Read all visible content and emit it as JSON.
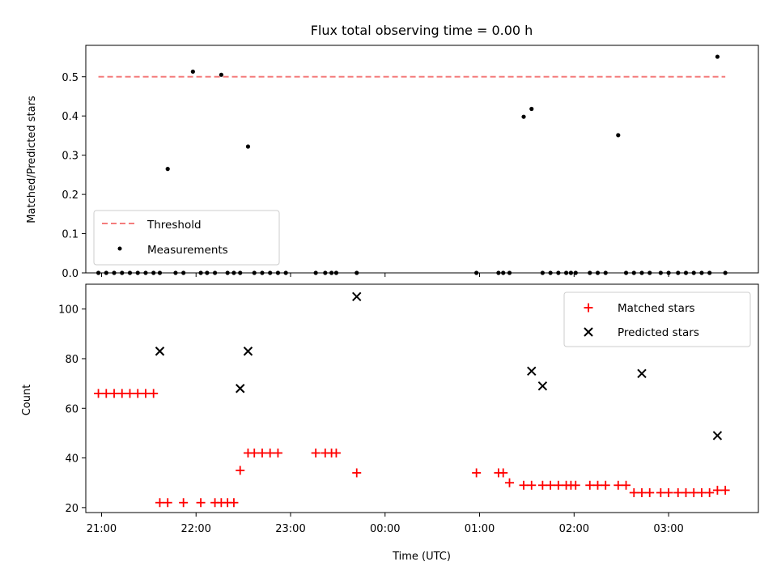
{
  "title": "Flux total observing time = 0.00 h",
  "colors": {
    "threshold": "#f47c7c",
    "measurements": "#000000",
    "matched": "#ff0000",
    "predicted": "#000000",
    "axis": "#000000"
  },
  "chart_data": [
    {
      "type": "scatter",
      "ylabel": "Matched/Predicted stars",
      "xlim": [
        "20:50",
        "03:57"
      ],
      "ylim": [
        0,
        0.58
      ],
      "yticks": [
        "0.0",
        "0.1",
        "0.2",
        "0.3",
        "0.4",
        "0.5"
      ],
      "legend": {
        "position": "lower-left",
        "entries": [
          "Threshold",
          "Measurements"
        ]
      },
      "threshold": {
        "name": "Threshold",
        "value": 0.5,
        "x_start": "20:58",
        "x_end": "03:36",
        "style": "dashed"
      },
      "series": [
        {
          "name": "Measurements",
          "x": [
            "20:58",
            "21:03",
            "21:08",
            "21:13",
            "21:18",
            "21:23",
            "21:28",
            "21:33",
            "21:37",
            "21:42",
            "21:47",
            "21:52",
            "21:58",
            "22:03",
            "22:07",
            "22:12",
            "22:16",
            "22:20",
            "22:24",
            "22:28",
            "22:33",
            "22:37",
            "22:42",
            "22:47",
            "22:52",
            "22:57",
            "23:16",
            "23:22",
            "23:26",
            "23:29",
            "23:42",
            "00:58",
            "01:12",
            "01:15",
            "01:19",
            "01:28",
            "01:33",
            "01:40",
            "01:45",
            "01:50",
            "01:55",
            "01:58",
            "02:01",
            "02:10",
            "02:15",
            "02:20",
            "02:28",
            "02:33",
            "02:38",
            "02:43",
            "02:48",
            "02:55",
            "03:00",
            "03:06",
            "03:11",
            "03:16",
            "03:21",
            "03:26",
            "03:31",
            "03:36"
          ],
          "y": [
            0,
            0,
            0,
            0,
            0,
            0,
            0,
            0,
            0,
            0.265,
            0,
            0,
            0.513,
            0,
            0,
            0,
            0.505,
            0,
            0,
            0,
            0.322,
            0,
            0,
            0,
            0,
            0,
            0,
            0,
            0,
            0,
            0,
            0,
            0,
            0,
            0,
            0.398,
            0.418,
            0,
            0,
            0,
            0,
            0,
            0,
            0,
            0,
            0,
            0.351,
            0,
            0,
            0,
            0,
            0,
            0,
            0,
            0,
            0,
            0,
            0,
            0.551,
            0
          ]
        }
      ]
    },
    {
      "type": "scatter",
      "xlabel": "Time (UTC)",
      "ylabel": "Count",
      "xlim": [
        "20:50",
        "03:57"
      ],
      "ylim": [
        18,
        110
      ],
      "xticks": [
        "21:00",
        "22:00",
        "23:00",
        "00:00",
        "01:00",
        "02:00",
        "03:00"
      ],
      "yticks": [
        "20",
        "40",
        "60",
        "80",
        "100"
      ],
      "legend": {
        "position": "top-right",
        "entries": [
          "Matched stars",
          "Predicted stars"
        ]
      },
      "series": [
        {
          "name": "Matched stars",
          "marker": "plus",
          "x": [
            "20:58",
            "21:03",
            "21:08",
            "21:13",
            "21:18",
            "21:23",
            "21:28",
            "21:33",
            "21:37",
            "21:42",
            "21:52",
            "22:03",
            "22:12",
            "22:16",
            "22:20",
            "22:24",
            "22:28",
            "22:33",
            "22:37",
            "22:42",
            "22:47",
            "22:52",
            "23:16",
            "23:22",
            "23:26",
            "23:29",
            "23:42",
            "00:58",
            "01:12",
            "01:15",
            "01:19",
            "01:28",
            "01:33",
            "01:40",
            "01:45",
            "01:50",
            "01:55",
            "01:58",
            "02:01",
            "02:10",
            "02:15",
            "02:20",
            "02:28",
            "02:33",
            "02:38",
            "02:43",
            "02:48",
            "02:55",
            "03:00",
            "03:06",
            "03:11",
            "03:16",
            "03:21",
            "03:26",
            "03:31",
            "03:36"
          ],
          "y": [
            66,
            66,
            66,
            66,
            66,
            66,
            66,
            66,
            22,
            22,
            22,
            22,
            22,
            22,
            22,
            22,
            35,
            42,
            42,
            42,
            42,
            42,
            42,
            42,
            42,
            42,
            34,
            34,
            34,
            34,
            30,
            29,
            29,
            29,
            29,
            29,
            29,
            29,
            29,
            29,
            29,
            29,
            29,
            29,
            26,
            26,
            26,
            26,
            26,
            26,
            26,
            26,
            26,
            26,
            27,
            27
          ]
        },
        {
          "name": "Predicted stars",
          "marker": "x",
          "x": [
            "21:37",
            "22:28",
            "22:33",
            "23:42",
            "01:33",
            "01:40",
            "02:43",
            "03:31"
          ],
          "y": [
            83,
            68,
            83,
            105,
            75,
            69,
            74,
            49
          ]
        }
      ]
    }
  ]
}
